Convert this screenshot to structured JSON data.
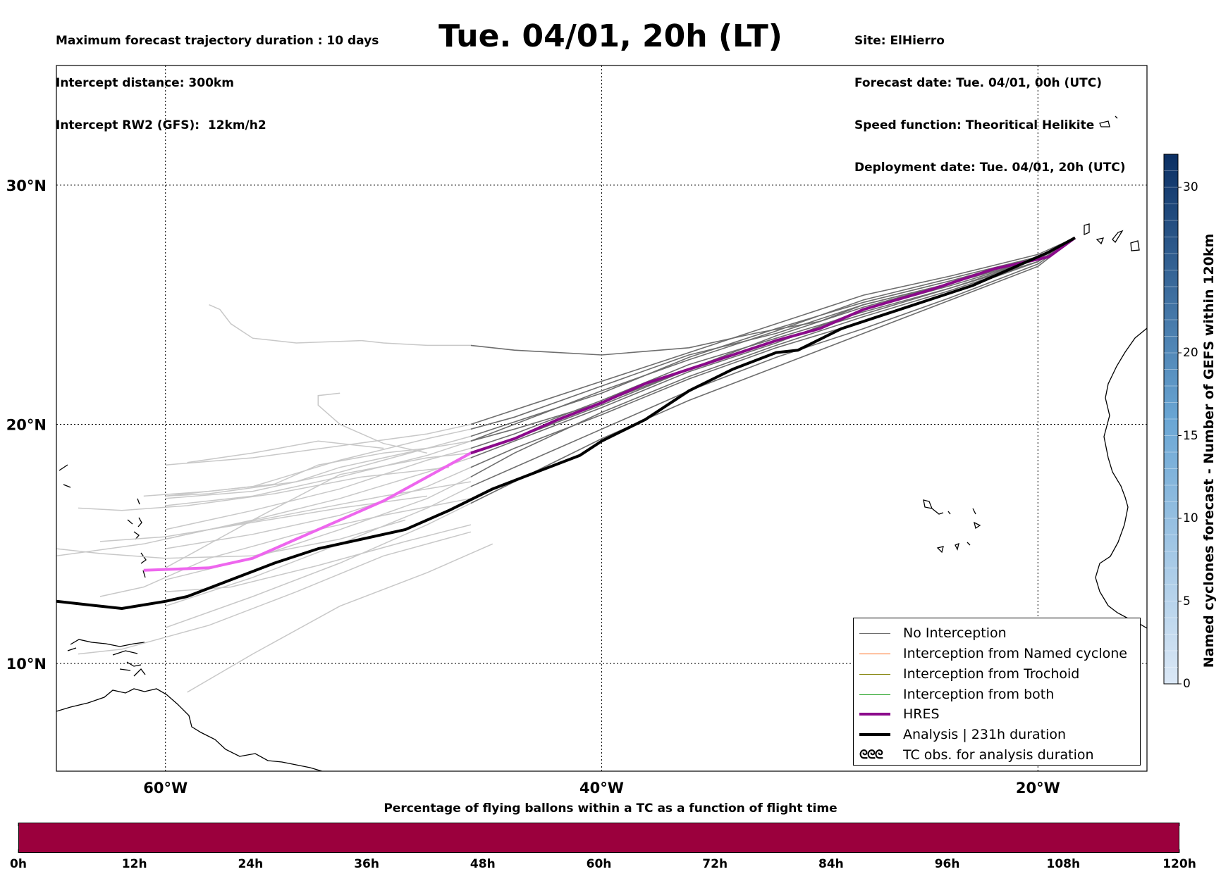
{
  "header": {
    "left_lines": [
      "Maximum forecast trajectory duration : 10 days",
      "Intercept distance: 300km",
      "Intercept RW2 (GFS):  12km/h2"
    ],
    "title": "Tue. 04/01, 20h (LT)",
    "right_lines": [
      "Site: ElHierro",
      "Forecast date: Tue. 04/01, 00h (UTC)",
      "Speed function: Theoritical Helikite",
      "Deployment date: Tue. 04/01, 20h (UTC)"
    ]
  },
  "colors": {
    "no_interception": "#6e6e6e",
    "no_interception_light": "#c8c8c8",
    "named_cyclone": "#ff6a1a",
    "trochoid": "#7f7f00",
    "both": "#1a9e1a",
    "hres": "#8b0a8b",
    "hres_light": "#ee66ee",
    "analysis": "#000000",
    "bottom_bar": "#9b003d",
    "colorbar_low": "#dbe8f6",
    "colorbar_high": "#0b2f63"
  },
  "legend": {
    "items": [
      {
        "label": "No Interception",
        "color": "#6e6e6e",
        "width": 1.5
      },
      {
        "label": "Interception from Named cyclone",
        "color": "#ff6a1a",
        "width": 1.5
      },
      {
        "label": "Interception from Trochoid",
        "color": "#7f7f00",
        "width": 1.5
      },
      {
        "label": "Interception from both",
        "color": "#1a9e1a",
        "width": 1.5
      },
      {
        "label": "HRES",
        "color": "#8b0a8b",
        "width": 4
      },
      {
        "label": "Analysis | 231h duration",
        "color": "#000000",
        "width": 4
      }
    ],
    "tc_obs_label": "TC obs. for analysis duration",
    "tc_obs_symbol": "ᘓᘓᘓ"
  },
  "colorbar": {
    "label": "Named cyclones forecast - Number of GEFS within 120km",
    "ticks": [
      0,
      5,
      10,
      15,
      20,
      30
    ],
    "range": [
      0,
      32
    ]
  },
  "bottom": {
    "title": "Percentage of flying ballons within a TC as a function of flight time",
    "ticks": [
      "0h",
      "12h",
      "24h",
      "36h",
      "48h",
      "60h",
      "72h",
      "84h",
      "96h",
      "108h",
      "120h"
    ]
  },
  "chart_data": {
    "type": "line",
    "projection": "lon-lat map",
    "xlim": [
      -65,
      -15
    ],
    "ylim": [
      5.5,
      35
    ],
    "x_ticks": [
      {
        "value": -60,
        "label": "60°W"
      },
      {
        "value": -40,
        "label": "40°W"
      },
      {
        "value": -20,
        "label": "20°W"
      }
    ],
    "y_ticks": [
      {
        "value": 10,
        "label": "10°N"
      },
      {
        "value": 20,
        "label": "20°N"
      },
      {
        "value": 30,
        "label": "30°N"
      }
    ],
    "grid": true,
    "legend_position": "bottom-right",
    "hres": [
      [
        -18.3,
        27.8
      ],
      [
        -19.5,
        27.0
      ],
      [
        -22,
        26.5
      ],
      [
        -25,
        25.6
      ],
      [
        -28,
        24.8
      ],
      [
        -30,
        24.0
      ],
      [
        -32,
        23.5
      ],
      [
        -35,
        22.6
      ],
      [
        -38,
        21.7
      ],
      [
        -40,
        20.9
      ],
      [
        -42,
        20.2
      ],
      [
        -44,
        19.4
      ],
      [
        -46,
        18.8
      ],
      [
        -48,
        17.8
      ],
      [
        -50,
        16.8
      ],
      [
        -52,
        16.0
      ],
      [
        -54,
        15.2
      ],
      [
        -56,
        14.4
      ],
      [
        -58,
        14.0
      ],
      [
        -61,
        13.9
      ]
    ],
    "hres_light_from_lon": -47.5,
    "analysis": [
      [
        -18.3,
        27.8
      ],
      [
        -19.5,
        27.2
      ],
      [
        -21,
        26.6
      ],
      [
        -23,
        25.8
      ],
      [
        -25,
        25.2
      ],
      [
        -27,
        24.6
      ],
      [
        -29,
        24.0
      ],
      [
        -31,
        23.1
      ],
      [
        -32,
        23.0
      ],
      [
        -34,
        22.3
      ],
      [
        -36,
        21.4
      ],
      [
        -38,
        20.2
      ],
      [
        -40,
        19.3
      ],
      [
        -41,
        18.7
      ],
      [
        -43,
        18.0
      ],
      [
        -45,
        17.3
      ],
      [
        -47,
        16.4
      ],
      [
        -49,
        15.6
      ],
      [
        -51,
        15.2
      ],
      [
        -53,
        14.8
      ],
      [
        -55,
        14.2
      ],
      [
        -57,
        13.5
      ],
      [
        -59,
        12.8
      ],
      [
        -60,
        12.6
      ],
      [
        -62,
        12.3
      ],
      [
        -65,
        12.6
      ]
    ],
    "ensemble": [
      [
        [
          -18.3,
          27.8
        ],
        [
          -20,
          27.0
        ],
        [
          -24,
          26.1
        ],
        [
          -28,
          25.2
        ],
        [
          -32,
          23.9
        ],
        [
          -36,
          22.7
        ],
        [
          -40,
          21.4
        ],
        [
          -44,
          20.0
        ],
        [
          -46,
          19.3
        ],
        [
          -48,
          18.7
        ],
        [
          -52,
          17.8
        ],
        [
          -56,
          17.0
        ],
        [
          -60,
          16.6
        ]
      ],
      [
        [
          -18.3,
          27.8
        ],
        [
          -20,
          26.9
        ],
        [
          -24,
          25.7
        ],
        [
          -28,
          24.7
        ],
        [
          -32,
          23.6
        ],
        [
          -36,
          22.5
        ],
        [
          -40,
          21.0
        ],
        [
          -44,
          19.6
        ],
        [
          -46,
          19.0
        ],
        [
          -48,
          18.5
        ],
        [
          -52,
          17.3
        ],
        [
          -56,
          16.4
        ],
        [
          -60,
          15.6
        ]
      ],
      [
        [
          -18.3,
          27.8
        ],
        [
          -20,
          27.0
        ],
        [
          -24,
          25.9
        ],
        [
          -28,
          25.0
        ],
        [
          -32,
          23.8
        ],
        [
          -36,
          22.9
        ],
        [
          -40,
          21.6
        ],
        [
          -44,
          20.3
        ],
        [
          -46,
          19.8
        ],
        [
          -48,
          19.4
        ],
        [
          -52,
          18.5
        ],
        [
          -56,
          17.4
        ],
        [
          -60,
          17.0
        ]
      ],
      [
        [
          -18.3,
          27.8
        ],
        [
          -20,
          26.8
        ],
        [
          -24,
          25.5
        ],
        [
          -28,
          24.3
        ],
        [
          -32,
          23.2
        ],
        [
          -36,
          21.9
        ],
        [
          -40,
          20.4
        ],
        [
          -44,
          19.0
        ],
        [
          -46,
          18.2
        ],
        [
          -48,
          17.4
        ],
        [
          -52,
          16.2
        ],
        [
          -56,
          15.4
        ],
        [
          -60,
          14.8
        ]
      ],
      [
        [
          -18.3,
          27.8
        ],
        [
          -20,
          27.1
        ],
        [
          -24,
          26.2
        ],
        [
          -28,
          25.4
        ],
        [
          -32,
          24.2
        ],
        [
          -36,
          23.0
        ],
        [
          -40,
          21.8
        ],
        [
          -44,
          20.6
        ],
        [
          -46,
          20.0
        ],
        [
          -48,
          19.6
        ],
        [
          -52,
          19.1
        ],
        [
          -56,
          18.6
        ],
        [
          -60,
          18.3
        ]
      ],
      [
        [
          -18.3,
          27.8
        ],
        [
          -20,
          26.7
        ],
        [
          -24,
          25.3
        ],
        [
          -28,
          24.0
        ],
        [
          -32,
          22.8
        ],
        [
          -36,
          21.4
        ],
        [
          -40,
          19.8
        ],
        [
          -44,
          18.2
        ],
        [
          -46,
          17.4
        ],
        [
          -48,
          16.5
        ],
        [
          -52,
          15.0
        ],
        [
          -56,
          13.6
        ],
        [
          -60,
          12.4
        ]
      ],
      [
        [
          -18.3,
          27.8
        ],
        [
          -20,
          26.9
        ],
        [
          -24,
          25.8
        ],
        [
          -28,
          24.8
        ],
        [
          -32,
          23.4
        ],
        [
          -36,
          22.2
        ],
        [
          -40,
          20.7
        ],
        [
          -44,
          19.3
        ],
        [
          -46,
          18.6
        ],
        [
          -48,
          18.0
        ],
        [
          -52,
          16.9
        ],
        [
          -56,
          16.0
        ],
        [
          -60,
          15.2
        ]
      ],
      [
        [
          -18.3,
          27.8
        ],
        [
          -20,
          26.8
        ],
        [
          -24,
          25.6
        ],
        [
          -28,
          24.5
        ],
        [
          -32,
          23.3
        ],
        [
          -36,
          22.0
        ],
        [
          -40,
          20.5
        ],
        [
          -44,
          18.8
        ],
        [
          -46,
          17.8
        ],
        [
          -48,
          16.9
        ],
        [
          -52,
          15.6
        ],
        [
          -56,
          14.4
        ],
        [
          -60,
          13.5
        ]
      ],
      [
        [
          -18.3,
          27.8
        ],
        [
          -20,
          27.0
        ],
        [
          -24,
          26.0
        ],
        [
          -28,
          25.1
        ],
        [
          -32,
          24.0
        ],
        [
          -36,
          22.8
        ],
        [
          -40,
          21.3
        ],
        [
          -44,
          20.1
        ],
        [
          -46,
          19.5
        ],
        [
          -48,
          19.0
        ],
        [
          -52,
          18.0
        ],
        [
          -56,
          17.2
        ],
        [
          -60,
          16.9
        ]
      ],
      [
        [
          -18.3,
          27.8
        ],
        [
          -20,
          26.6
        ],
        [
          -24,
          25.2
        ],
        [
          -28,
          23.8
        ],
        [
          -32,
          22.4
        ],
        [
          -36,
          21.0
        ],
        [
          -40,
          19.4
        ],
        [
          -44,
          17.6
        ],
        [
          -46,
          16.7
        ],
        [
          -48,
          15.8
        ],
        [
          -52,
          14.2
        ],
        [
          -56,
          12.8
        ],
        [
          -60,
          11.5
        ]
      ],
      [
        [
          -18.3,
          27.8
        ],
        [
          -20,
          26.9
        ],
        [
          -24,
          25.9
        ],
        [
          -28,
          25.0
        ],
        [
          -30,
          24.3
        ],
        [
          -33,
          23.8
        ],
        [
          -36,
          23.2
        ],
        [
          -40,
          22.9
        ],
        [
          -44,
          23.1
        ],
        [
          -46,
          23.3
        ],
        [
          -48,
          23.3
        ],
        [
          -50,
          23.4
        ],
        [
          -51,
          23.5
        ]
      ],
      [
        [
          -18.3,
          27.8
        ],
        [
          -20,
          26.8
        ],
        [
          -24,
          25.7
        ],
        [
          -28,
          24.6
        ],
        [
          -32,
          23.5
        ],
        [
          -36,
          22.3
        ],
        [
          -40,
          20.9
        ],
        [
          -44,
          19.8
        ],
        [
          -46,
          19.3
        ],
        [
          -48,
          19.0
        ],
        [
          -52,
          18.2
        ],
        [
          -54,
          17.6
        ],
        [
          -58,
          17.1
        ],
        [
          -60,
          17.0
        ]
      ],
      [
        [
          -18.3,
          27.8
        ],
        [
          -20,
          27.0
        ],
        [
          -24,
          25.9
        ],
        [
          -28,
          24.9
        ],
        [
          -32,
          23.7
        ],
        [
          -36,
          22.3
        ],
        [
          -40,
          20.8
        ],
        [
          -44,
          19.4
        ],
        [
          -46,
          18.8
        ],
        [
          -48,
          18.6
        ],
        [
          -52,
          17.9
        ],
        [
          -56,
          16.0
        ],
        [
          -60,
          14.0
        ]
      ]
    ],
    "ensemble_light_from_lon": -47,
    "light_tracks": [
      [
        [
          -48,
          19.0
        ],
        [
          -50,
          18.8
        ],
        [
          -53,
          18.3
        ],
        [
          -55,
          17.5
        ],
        [
          -58,
          17.2
        ],
        [
          -61,
          17.0
        ]
      ],
      [
        [
          -50,
          19.0
        ],
        [
          -53,
          19.3
        ],
        [
          -56,
          18.8
        ],
        [
          -59,
          18.4
        ]
      ],
      [
        [
          -51,
          23.5
        ],
        [
          -54,
          23.4
        ],
        [
          -56,
          23.6
        ],
        [
          -57,
          24.2
        ],
        [
          -57.5,
          24.8
        ],
        [
          -58,
          25.0
        ]
      ],
      [
        [
          -48,
          18.8
        ],
        [
          -50,
          19.2
        ],
        [
          -52,
          20.0
        ],
        [
          -53,
          20.8
        ],
        [
          -53,
          21.2
        ],
        [
          -52,
          21.3
        ]
      ],
      [
        [
          -49,
          16.0
        ],
        [
          -52,
          15.2
        ],
        [
          -56,
          14.5
        ],
        [
          -60,
          14.4
        ],
        [
          -63,
          14.6
        ],
        [
          -65,
          14.8
        ]
      ],
      [
        [
          -46,
          15.5
        ],
        [
          -50,
          14.5
        ],
        [
          -54,
          13.0
        ],
        [
          -58,
          11.6
        ],
        [
          -62,
          10.6
        ],
        [
          -64,
          10.4
        ]
      ],
      [
        [
          -45,
          15.0
        ],
        [
          -48,
          13.8
        ],
        [
          -52,
          12.4
        ],
        [
          -56,
          10.4
        ],
        [
          -59,
          8.8
        ]
      ],
      [
        [
          -46,
          17.6
        ],
        [
          -50,
          17.0
        ],
        [
          -54,
          16.3
        ],
        [
          -58,
          15.6
        ],
        [
          -61,
          15.0
        ],
        [
          -65,
          14.5
        ]
      ],
      [
        [
          -47,
          18.2
        ],
        [
          -51,
          17.8
        ],
        [
          -55,
          17.1
        ],
        [
          -59,
          16.6
        ],
        [
          -62,
          16.4
        ],
        [
          -64,
          16.5
        ]
      ],
      [
        [
          -46,
          16.9
        ],
        [
          -50,
          16.2
        ],
        [
          -54,
          15.4
        ],
        [
          -58,
          14.4
        ],
        [
          -61,
          13.2
        ],
        [
          -63,
          12.8
        ]
      ],
      [
        [
          -48,
          17.0
        ],
        [
          -52,
          16.5
        ],
        [
          -56,
          15.9
        ],
        [
          -60,
          15.3
        ],
        [
          -63,
          15.1
        ]
      ],
      [
        [
          -46,
          15.8
        ],
        [
          -49,
          15.1
        ],
        [
          -53,
          14.1
        ],
        [
          -57,
          13.2
        ],
        [
          -60,
          13.0
        ]
      ]
    ]
  }
}
